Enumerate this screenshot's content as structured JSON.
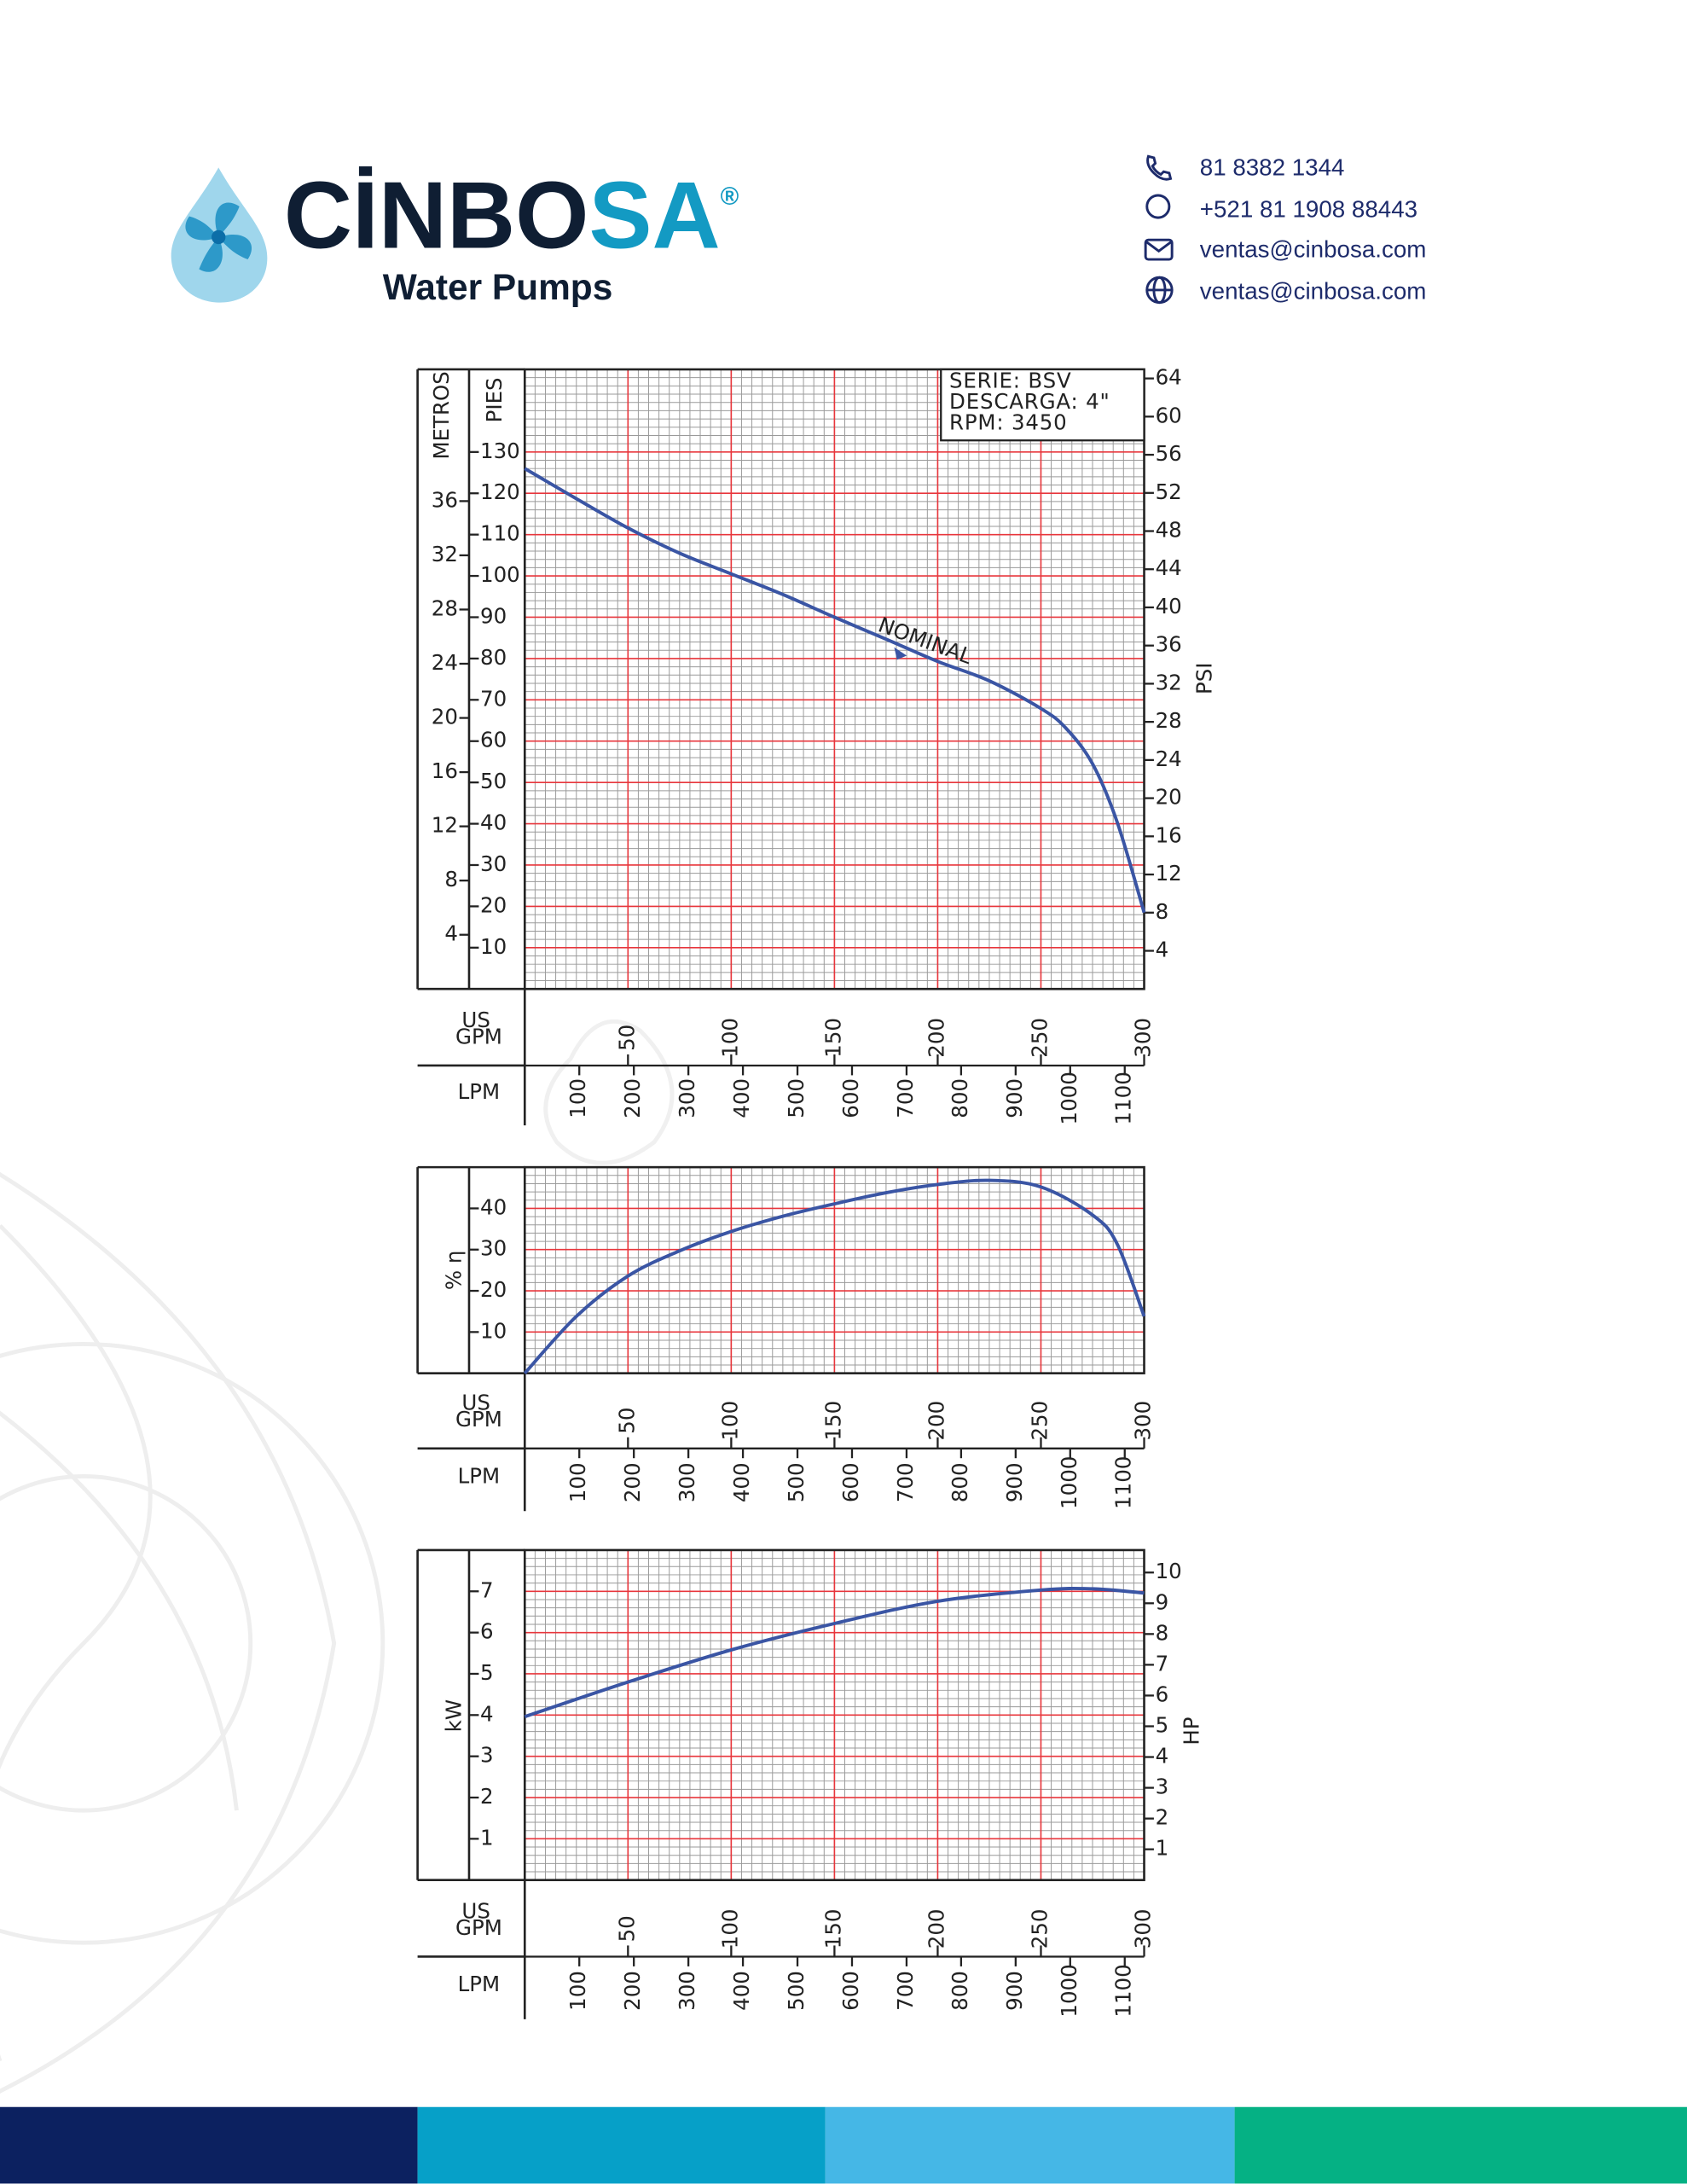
{
  "header": {
    "brand_dark": "CİNBO",
    "brand_accent": "SA",
    "registered": "®",
    "tagline": "Water Pumps",
    "contacts": [
      "81 8382 1344",
      "+521 81 1908 88443",
      "ventas@cinbosa.com",
      "ventas@cinbosa.com"
    ]
  },
  "chart_data": [
    {
      "type": "line",
      "info": [
        "SERIE: BSV",
        "DESCARGA: 4\"",
        "RPM: 3450"
      ],
      "color": "#3a55a4",
      "grid": true,
      "x": [
        0,
        25,
        50,
        75,
        100,
        125,
        150,
        175,
        200,
        225,
        250,
        262,
        275,
        287,
        300
      ],
      "values": [
        126,
        118.7,
        111.6,
        105.5,
        100.5,
        95.5,
        90,
        84.7,
        79.3,
        74.6,
        67.9,
        63.2,
        54.5,
        40.3,
        18.5
      ],
      "annotation": {
        "text": "NOMINAL",
        "x": 185,
        "y": 80.7
      },
      "xlim": [
        0,
        300
      ],
      "xticks": [
        50,
        100,
        150,
        200,
        250,
        300
      ],
      "xlabel": [
        "US",
        "GPM"
      ],
      "x2lim": [
        0,
        1135.6
      ],
      "x2ticks": [
        100,
        200,
        300,
        400,
        500,
        600,
        700,
        800,
        900,
        1000,
        1100
      ],
      "x2label": "LPM",
      "ylim": [
        0,
        150
      ],
      "yticks": [
        10,
        20,
        30,
        40,
        50,
        60,
        70,
        80,
        90,
        100,
        110,
        120,
        130
      ],
      "ylabel": "PIES",
      "y3lim": [
        0,
        45.72
      ],
      "y3ticks": [
        4,
        8,
        12,
        16,
        20,
        24,
        28,
        32,
        36
      ],
      "y3label": "METROS",
      "y2lim": [
        0,
        64.95
      ],
      "y2ticks": [
        4,
        8,
        12,
        16,
        20,
        24,
        28,
        32,
        36,
        40,
        44,
        48,
        52,
        56,
        60,
        64
      ],
      "y2label": "PSI"
    },
    {
      "type": "line",
      "color": "#3a55a4",
      "grid": true,
      "x": [
        0,
        25,
        50,
        75,
        100,
        125,
        150,
        175,
        200,
        225,
        250,
        275,
        287,
        300
      ],
      "values": [
        0,
        13.8,
        23.6,
        29.7,
        34.4,
        38.1,
        41.1,
        43.8,
        45.8,
        46.8,
        45.2,
        38.4,
        31.3,
        13.8
      ],
      "xlim": [
        0,
        300
      ],
      "xticks": [
        50,
        100,
        150,
        200,
        250,
        300
      ],
      "xlabel": [
        "US",
        "GPM"
      ],
      "x2lim": [
        0,
        1135.6
      ],
      "x2ticks": [
        100,
        200,
        300,
        400,
        500,
        600,
        700,
        800,
        900,
        1000,
        1100
      ],
      "x2label": "LPM",
      "ylim": [
        0,
        50
      ],
      "yticks": [
        10,
        20,
        30,
        40
      ],
      "ylabel": "% η"
    },
    {
      "type": "line",
      "color": "#3a55a4",
      "grid": true,
      "x": [
        0,
        50,
        100,
        150,
        200,
        250,
        275,
        300
      ],
      "values": [
        3.96,
        4.8,
        5.58,
        6.22,
        6.76,
        7.03,
        7.06,
        6.96
      ],
      "xlim": [
        0,
        300
      ],
      "xticks": [
        50,
        100,
        150,
        200,
        250,
        300
      ],
      "xlabel": [
        "US",
        "GPM"
      ],
      "x2lim": [
        0,
        1135.6
      ],
      "x2ticks": [
        100,
        200,
        300,
        400,
        500,
        600,
        700,
        800,
        900,
        1000,
        1100
      ],
      "x2label": "LPM",
      "ylim": [
        0,
        8
      ],
      "yticks": [
        1,
        2,
        3,
        4,
        5,
        6,
        7
      ],
      "ylabel": "kW",
      "y2lim": [
        0,
        10.73
      ],
      "y2ticks": [
        1,
        2,
        3,
        4,
        5,
        6,
        7,
        8,
        9,
        10
      ],
      "y2label": "HP"
    }
  ]
}
